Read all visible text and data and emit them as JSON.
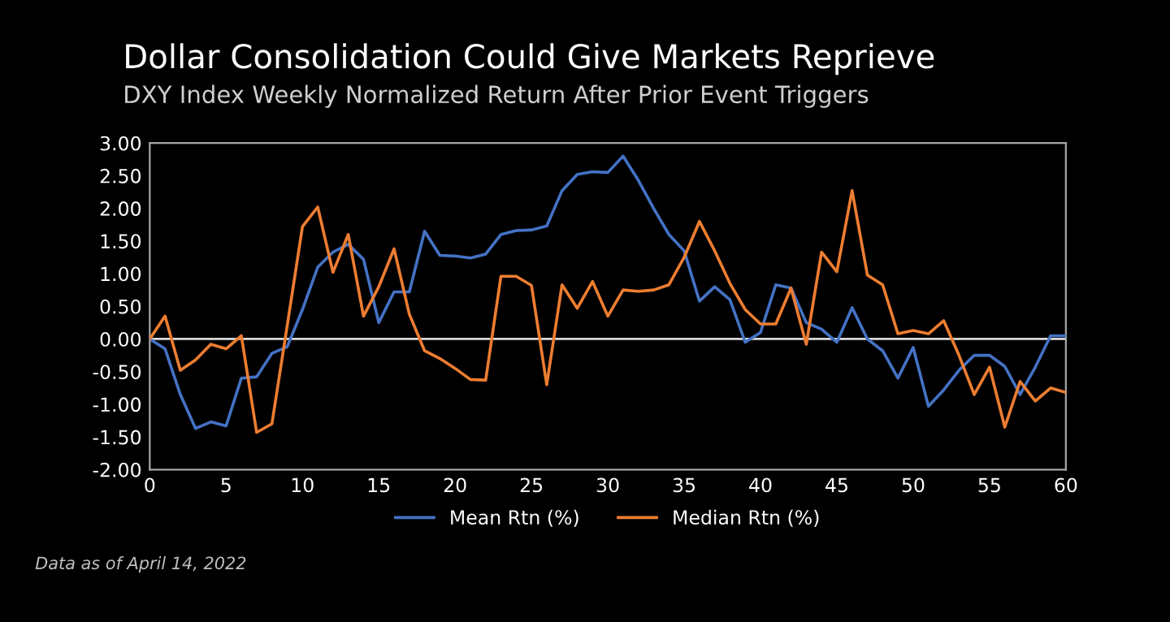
{
  "chart_data": {
    "type": "line",
    "title": "Dollar Consolidation Could Give Markets Reprieve",
    "subtitle": "DXY Index Weekly Normalized Return After Prior Event Triggers",
    "x": [
      0,
      1,
      2,
      3,
      4,
      5,
      6,
      7,
      8,
      9,
      10,
      11,
      12,
      13,
      14,
      15,
      16,
      17,
      18,
      19,
      20,
      21,
      22,
      23,
      24,
      25,
      26,
      27,
      28,
      29,
      30,
      31,
      32,
      33,
      34,
      35,
      36,
      37,
      38,
      39,
      40,
      41,
      42,
      43,
      44,
      45,
      46,
      47,
      48,
      49,
      50,
      51,
      52,
      53,
      54,
      55,
      56,
      57,
      58,
      59,
      60
    ],
    "series": [
      {
        "name": "Mean Rtn (%)",
        "color": "#4472c4",
        "values": [
          0,
          -0.15,
          -0.85,
          -1.37,
          -1.27,
          -1.33,
          -0.6,
          -0.58,
          -0.22,
          -0.12,
          0.45,
          1.1,
          1.33,
          1.45,
          1.22,
          0.25,
          0.72,
          0.72,
          1.65,
          1.28,
          1.27,
          1.24,
          1.3,
          1.6,
          1.66,
          1.67,
          1.73,
          2.27,
          2.52,
          2.56,
          2.55,
          2.8,
          2.43,
          2.0,
          1.6,
          1.35,
          0.58,
          0.8,
          0.6,
          -0.05,
          0.1,
          0.83,
          0.78,
          0.25,
          0.15,
          -0.05,
          0.48,
          0.0,
          -0.18,
          -0.6,
          -0.13,
          -1.03,
          -0.78,
          -0.48,
          -0.25,
          -0.25,
          -0.42,
          -0.85,
          -0.43,
          0.05,
          0.05
        ]
      },
      {
        "name": "Median Rtn (%)",
        "color": "#ed7d31",
        "values": [
          0,
          0.35,
          -0.48,
          -0.32,
          -0.08,
          -0.15,
          0.05,
          -1.43,
          -1.3,
          0.2,
          1.72,
          2.02,
          1.02,
          1.6,
          0.35,
          0.8,
          1.38,
          0.38,
          -0.18,
          -0.3,
          -0.45,
          -0.62,
          -0.63,
          0.96,
          0.96,
          0.82,
          -0.7,
          0.83,
          0.47,
          0.88,
          0.35,
          0.75,
          0.73,
          0.75,
          0.83,
          1.25,
          1.8,
          1.35,
          0.85,
          0.45,
          0.23,
          0.23,
          0.78,
          -0.08,
          1.33,
          1.03,
          2.27,
          0.98,
          0.83,
          0.08,
          0.13,
          0.08,
          0.28,
          -0.25,
          -0.85,
          -0.43,
          -1.35,
          -0.65,
          -0.95,
          -0.75,
          -0.82
        ]
      }
    ],
    "xlim": [
      0,
      60
    ],
    "xticks": [
      0,
      5,
      10,
      15,
      20,
      25,
      30,
      35,
      40,
      45,
      50,
      55,
      60
    ],
    "ylim": [
      -2,
      3
    ],
    "yticks": [
      {
        "value": -2,
        "label": "-2.00"
      },
      {
        "value": -1.5,
        "label": "-1.50"
      },
      {
        "value": -1,
        "label": "-1.00"
      },
      {
        "value": -0.5,
        "label": "-0.50"
      },
      {
        "value": 0,
        "label": "0.00"
      },
      {
        "value": 0.5,
        "label": "0.50"
      },
      {
        "value": 1,
        "label": "1.00"
      },
      {
        "value": 1.5,
        "label": "1.50"
      },
      {
        "value": 2,
        "label": "2.00"
      },
      {
        "value": 2.5,
        "label": "2.50"
      },
      {
        "value": 3,
        "label": "3.00"
      }
    ],
    "ref_lines": [
      {
        "axis": "y",
        "value": 0,
        "color": "#d9d9d9"
      }
    ],
    "grid": false,
    "legend": "bottom",
    "marker": "none",
    "line_style": "solid",
    "annotations": [
      "Data as of April 14, 2022"
    ]
  }
}
